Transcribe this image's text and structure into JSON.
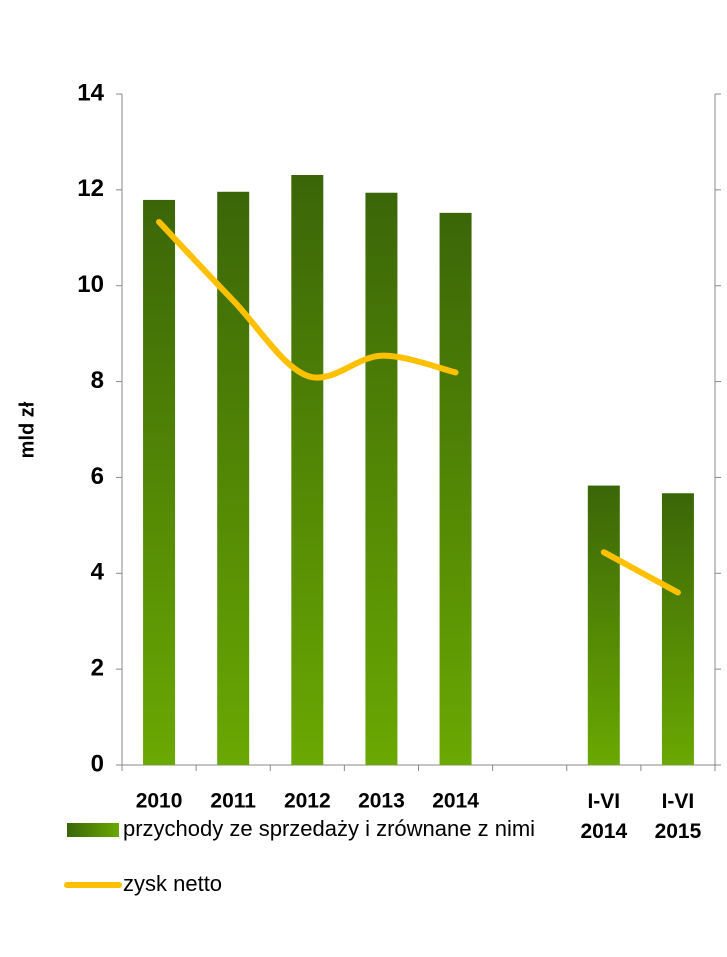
{
  "chart_data": {
    "type": "bar",
    "y_label": "mld zł",
    "categories": [
      "2010",
      "2011",
      "2012",
      "2013",
      "2014",
      null,
      "I-VI 2014",
      "I-VI 2015"
    ],
    "series": [
      {
        "name": "przychody ze sprzedaży i zrównane z nimi",
        "type": "bar",
        "color": "#5a8f05",
        "values": [
          11.79,
          11.96,
          12.31,
          11.94,
          11.52,
          null,
          5.83,
          5.67
        ]
      },
      {
        "name": "zysk netto",
        "type": "line",
        "color": "#ffc000",
        "values": [
          11.33,
          9.69,
          8.12,
          8.54,
          8.19,
          null,
          4.44,
          3.6
        ]
      }
    ],
    "ylim": [
      0,
      14
    ],
    "yticks": [
      0,
      2,
      4,
      6,
      8,
      10,
      12,
      14
    ],
    "legend": "bottom"
  }
}
